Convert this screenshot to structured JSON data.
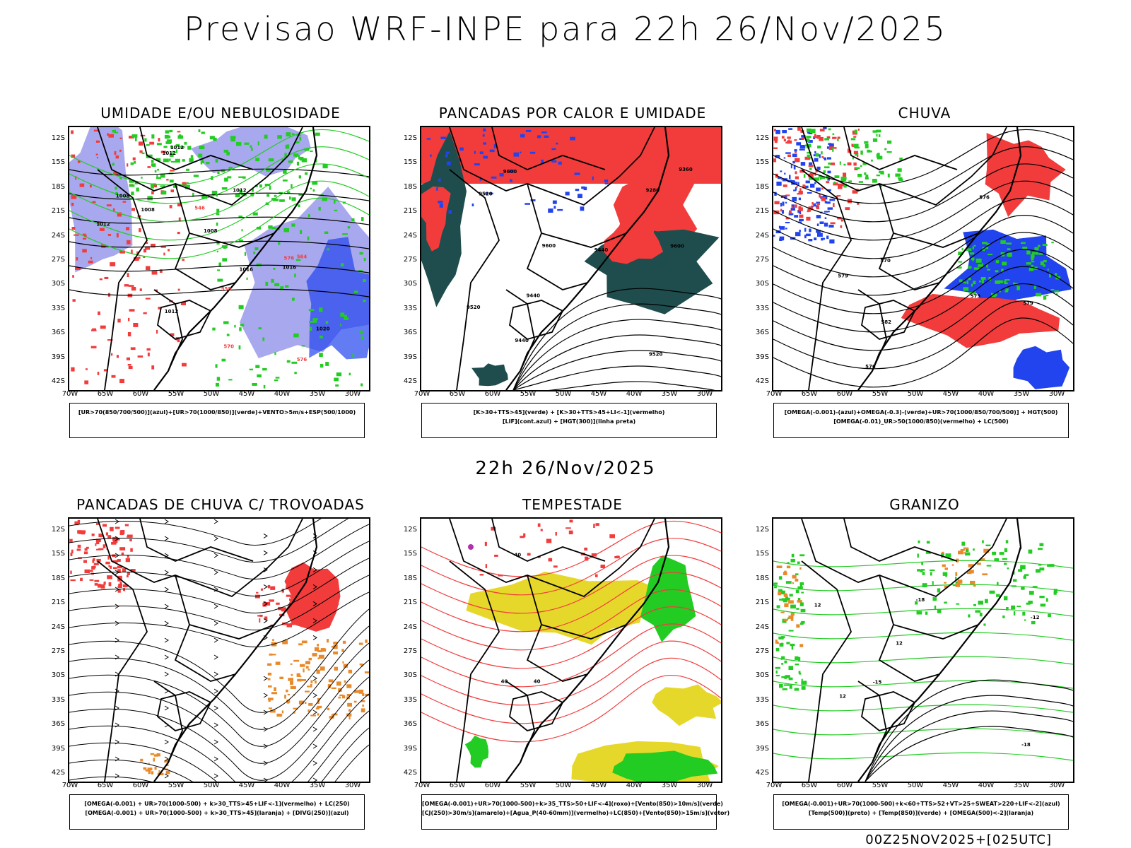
{
  "title": "Previsao WRF-INPE  para 22h 26/Nov/2025",
  "middle_title": "22h 26/Nov/2025",
  "footer": "00Z25NOV2025+[025UTC]",
  "axes": {
    "lat_labels": [
      "12S",
      "15S",
      "18S",
      "21S",
      "24S",
      "27S",
      "30S",
      "33S",
      "36S",
      "39S",
      "42S"
    ],
    "lon_labels": [
      "70W",
      "65W",
      "60W",
      "55W",
      "50W",
      "45W",
      "40W",
      "35W",
      "30W"
    ]
  },
  "colors": {
    "red": "#f23c3c",
    "green": "#22cc22",
    "blue": "#2244ee",
    "lavender": "#a8a8ee",
    "darkteal": "#1f4d4d",
    "yellow": "#e6d82a",
    "orange": "#e88a2a",
    "purple": "#b030b0"
  },
  "panels": [
    {
      "title": "UMIDADE E/OU NEBULOSIDADE",
      "legend": [
        "[UR>70(850/700/500)](azul)+[UR>70(1000/850)](verde)+VENTO>5m/s+ESP(500/1000)"
      ],
      "contour_labels": [
        "1008",
        "1008",
        "1008",
        "1012",
        "1012",
        "1012",
        "1012",
        "1016",
        "1020",
        "1016",
        "1012",
        "576",
        "576",
        "564",
        "558",
        "570",
        "546"
      ]
    },
    {
      "title": "PANCADAS POR CALOR E UMIDADE",
      "legend": [
        "[K>30+TTS>45](verde) + [K>30+TTS>45+LI<-1](vermelho)",
        "[LIF](cont.azul) + [HGT(300)](linha preta)"
      ],
      "contour_labels": [
        "9600",
        "9600",
        "9600",
        "9520",
        "9520",
        "9520",
        "9440",
        "9440",
        "9440",
        "9360",
        "9280"
      ]
    },
    {
      "title": "CHUVA",
      "legend": [
        "[OMEGA(-0.001)-(azul)+OMEGA(-0.3)-(verde)+UR>70(1000/850/700/500)] + HGT(500)",
        "[OMEGA(-0.01)_UR>50(1000/850)(vermelho) + LC(500)"
      ],
      "contour_labels": [
        "576",
        "573",
        "570",
        "582",
        "579",
        "576",
        "579"
      ]
    },
    {
      "title": "PANCADAS DE CHUVA C/ TROVOADAS",
      "legend": [
        "[OMEGA(-0.001) + UR>70(1000-500) + k>30_TTS>45+LIF<-1](vermelho) + LC(250)",
        "[OMEGA(-0.001) + UR>70(1000-500) + k>30_TTS>45](laranja) + [DIVG(250)](azul)"
      ],
      "contour_labels": []
    },
    {
      "title": "TEMPESTADE",
      "legend": [
        "[OMEGA(-0.001)+UR>70(1000-500)+k>35_TTS>50+LIF<-4](roxo)+[Vento(850)>10m/s](verde)",
        "[CJ(250)>30m/s](amarelo)+[Agua_P(40-60mm)](vermelho)+LC(850)+[Vento(850)>15m/s](vetor)"
      ],
      "contour_labels": [
        "40",
        "40",
        "40"
      ]
    },
    {
      "title": "GRANIZO",
      "legend": [
        "[OMEGA(-0.001)+UR>70(1000-500)+k<60+TTS>52+VT>25+SWEAT>220+LIF<-2](azul)",
        "[Temp(500)](preto) + [Temp(850)](verde) + [OMEGA(500)<-2](laranja)"
      ],
      "contour_labels": [
        "12",
        "12",
        "12",
        "-12",
        "-15",
        "-18",
        "-18"
      ]
    }
  ]
}
